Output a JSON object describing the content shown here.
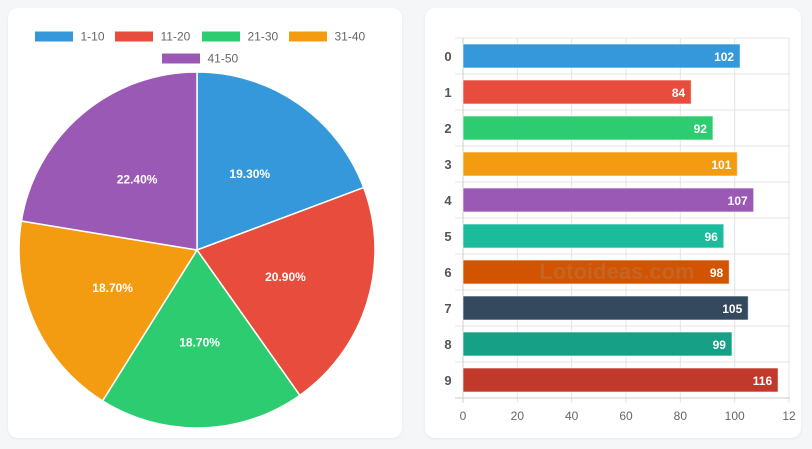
{
  "chart_data": [
    {
      "type": "pie",
      "legend_position": "top",
      "categories": [
        "1-10",
        "11-20",
        "21-30",
        "31-40",
        "41-50"
      ],
      "values": [
        19.3,
        20.9,
        18.7,
        18.7,
        22.4
      ],
      "labels": [
        "19.30%",
        "20.90%",
        "18.70%",
        "18.70%",
        "22.40%"
      ],
      "colors": [
        "#3498db",
        "#e74c3c",
        "#2ecc71",
        "#f39c12",
        "#9b59b6"
      ]
    },
    {
      "type": "bar",
      "orientation": "horizontal",
      "categories": [
        "0",
        "1",
        "2",
        "3",
        "4",
        "5",
        "6",
        "7",
        "8",
        "9"
      ],
      "values": [
        102,
        84,
        92,
        101,
        107,
        96,
        98,
        105,
        99,
        116
      ],
      "colors": [
        "#3498db",
        "#e74c3c",
        "#2ecc71",
        "#f39c12",
        "#9b59b6",
        "#1abc9c",
        "#d35400",
        "#34495e",
        "#16a085",
        "#c0392b"
      ],
      "xlim": [
        0,
        120
      ],
      "xticks": [
        "0",
        "20",
        "40",
        "60",
        "80",
        "100",
        "12"
      ],
      "grid": true,
      "watermark": "Lotoideas.com"
    }
  ]
}
